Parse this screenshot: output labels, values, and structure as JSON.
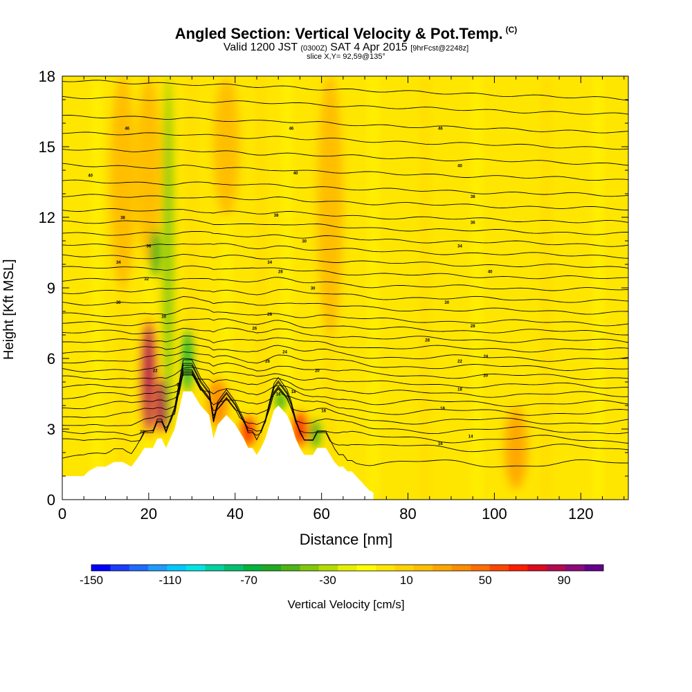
{
  "title": {
    "main": "Angled Section: Vertical Velocity & Pot.Temp.",
    "unit": "(C)",
    "valid_a": "Valid 1200 JST",
    "valid_z": "(0300Z)",
    "valid_b": "SAT 4 Apr 2015",
    "fcst": "[9hrFcst@2248z]",
    "slice": "slice X,Y= 92,59@135°"
  },
  "colors": {
    "background_field": "#ffd500",
    "contour": "#000000",
    "terrain": "#ffffff"
  },
  "chart_data": {
    "type": "heatmap",
    "xlabel": "Distance [nm]",
    "ylabel": "Height [Kft MSL]",
    "xlim": [
      0,
      131
    ],
    "ylim": [
      0,
      18
    ],
    "x_ticks": [
      0,
      20,
      40,
      60,
      80,
      100,
      120
    ],
    "y_ticks": [
      0,
      3,
      6,
      9,
      12,
      15,
      18
    ],
    "grid": false,
    "colorbar": {
      "label": "Vertical Velocity [cm/s]",
      "tick_labels": [
        -150,
        -110,
        -70,
        -30,
        10,
        50,
        90
      ],
      "bins": [
        -150,
        -140,
        -130,
        -120,
        -110,
        -100,
        -90,
        -80,
        -70,
        -60,
        -50,
        -40,
        -30,
        -20,
        -10,
        0,
        10,
        20,
        30,
        40,
        50,
        60,
        70,
        80,
        90,
        100,
        110
      ],
      "colors": [
        "#0000ff",
        "#1a3cff",
        "#1e6bff",
        "#1e9bff",
        "#00c8ff",
        "#00e4e4",
        "#00d2a0",
        "#00c070",
        "#00b43c",
        "#20aa20",
        "#50b414",
        "#82c80a",
        "#b4dc00",
        "#e6f000",
        "#ffff00",
        "#ffe600",
        "#ffd200",
        "#ffbe00",
        "#ffa500",
        "#ff8c00",
        "#ff6e00",
        "#ff4600",
        "#ff1e00",
        "#dc0a1e",
        "#b40a50",
        "#8c0a7a",
        "#64008c"
      ]
    },
    "terrain_profile": {
      "x": [
        0,
        5,
        6,
        8,
        10,
        12,
        14,
        16,
        18,
        19,
        20,
        21,
        22,
        23,
        24,
        25,
        26,
        27,
        28,
        29,
        30,
        32,
        34,
        35,
        36,
        38,
        40,
        42,
        43,
        44,
        45,
        46,
        47,
        48,
        49,
        50,
        51,
        52,
        53,
        54,
        55,
        56,
        57,
        58,
        59,
        60,
        61,
        62,
        63,
        64,
        65,
        66,
        67,
        68,
        69,
        70,
        71,
        72
      ],
      "height_kft": [
        1.0,
        1.0,
        1.2,
        1.4,
        1.4,
        1.6,
        1.6,
        1.4,
        1.9,
        2.2,
        2.2,
        2.2,
        2.6,
        2.6,
        2.2,
        2.6,
        3.0,
        3.8,
        4.6,
        4.6,
        4.6,
        4.0,
        3.6,
        2.6,
        3.2,
        3.6,
        3.2,
        2.6,
        2.2,
        2.2,
        1.9,
        2.2,
        2.6,
        3.2,
        3.8,
        4.0,
        3.8,
        3.6,
        3.2,
        2.6,
        2.2,
        1.9,
        1.9,
        1.9,
        2.2,
        2.2,
        2.2,
        1.9,
        1.6,
        1.4,
        1.4,
        1.2,
        1.2,
        1.0,
        0.8,
        0.6,
        0.4,
        0.3
      ]
    },
    "hotspots": [
      {
        "x": 20,
        "y_min": 2.6,
        "y_max": 7.8,
        "w": 90,
        "intensity": "high"
      },
      {
        "x": 23,
        "y_min": 2.8,
        "y_max": 5.2,
        "w": 90,
        "intensity": "high"
      },
      {
        "x": 43,
        "y_min": 2.2,
        "y_max": 3.6,
        "w": 70,
        "intensity": "high"
      },
      {
        "x": 55,
        "y_min": 2.2,
        "y_max": 3.8,
        "w": 70,
        "intensity": "high"
      },
      {
        "x": 36,
        "y_min": 3.0,
        "y_max": 5.2,
        "w": 45,
        "intensity": "medium"
      },
      {
        "x": 14,
        "y_min": 9.0,
        "y_max": 18.0,
        "w": 25,
        "intensity": "low"
      },
      {
        "x": 20,
        "y_min": 10.0,
        "y_max": 18.0,
        "w": 25,
        "intensity": "low"
      },
      {
        "x": 38,
        "y_min": 12.0,
        "y_max": 18.0,
        "w": 25,
        "intensity": "low"
      },
      {
        "x": 62,
        "y_min": 7.0,
        "y_max": 18.0,
        "w": 20,
        "intensity": "low"
      },
      {
        "x": 105,
        "y_min": 0.4,
        "y_max": 4.0,
        "w": 30,
        "intensity": "medium"
      }
    ],
    "downdrafts": [
      {
        "x": 24.5,
        "y_min": 3.0,
        "y_max": 18.0,
        "w": -40
      },
      {
        "x": 29,
        "y_min": 4.6,
        "y_max": 7.2,
        "w": -70
      },
      {
        "x": 21.5,
        "y_min": 9.5,
        "y_max": 11.5,
        "w": -60
      },
      {
        "x": 50.5,
        "y_min": 3.8,
        "y_max": 4.6,
        "w": -60
      },
      {
        "x": 58.5,
        "y_min": 2.2,
        "y_max": 3.4,
        "w": -60
      }
    ],
    "contour_heights_kft": [
      1.5,
      2.2,
      2.6,
      3.0,
      3.4,
      3.8,
      4.2,
      4.6,
      5.0,
      5.4,
      5.8,
      6.2,
      6.6,
      7.0,
      7.4,
      7.8,
      8.3,
      8.8,
      9.3,
      9.8,
      10.3,
      10.8,
      11.3,
      11.8,
      12.3,
      12.9,
      13.5,
      14.2,
      14.9,
      15.6,
      16.3,
      17.1,
      17.8
    ],
    "contour_labels": [
      {
        "x": 15.0,
        "y": 15.8,
        "text": "46"
      },
      {
        "x": 53.0,
        "y": 15.8,
        "text": "46"
      },
      {
        "x": 87.5,
        "y": 15.8,
        "text": "46"
      },
      {
        "x": 6.5,
        "y": 13.8,
        "text": "40"
      },
      {
        "x": 54.0,
        "y": 13.9,
        "text": "40"
      },
      {
        "x": 92.0,
        "y": 14.2,
        "text": "40"
      },
      {
        "x": 14.0,
        "y": 12.0,
        "text": "38"
      },
      {
        "x": 49.5,
        "y": 12.1,
        "text": "38"
      },
      {
        "x": 95.0,
        "y": 12.9,
        "text": "38"
      },
      {
        "x": 95.0,
        "y": 11.8,
        "text": "36"
      },
      {
        "x": 20.0,
        "y": 10.8,
        "text": "36"
      },
      {
        "x": 56.0,
        "y": 11.0,
        "text": "30"
      },
      {
        "x": 92.0,
        "y": 10.8,
        "text": "34"
      },
      {
        "x": 13.0,
        "y": 10.1,
        "text": "34"
      },
      {
        "x": 48.0,
        "y": 10.1,
        "text": "34"
      },
      {
        "x": 50.5,
        "y": 9.7,
        "text": "28"
      },
      {
        "x": 99.0,
        "y": 9.7,
        "text": "40"
      },
      {
        "x": 19.5,
        "y": 9.4,
        "text": "32"
      },
      {
        "x": 58.0,
        "y": 9.0,
        "text": "30"
      },
      {
        "x": 13.0,
        "y": 8.4,
        "text": "30"
      },
      {
        "x": 89.0,
        "y": 8.4,
        "text": "30"
      },
      {
        "x": 23.5,
        "y": 7.8,
        "text": "30"
      },
      {
        "x": 48.0,
        "y": 7.9,
        "text": "28"
      },
      {
        "x": 44.5,
        "y": 7.3,
        "text": "26"
      },
      {
        "x": 95.0,
        "y": 7.4,
        "text": "28"
      },
      {
        "x": 84.5,
        "y": 6.8,
        "text": "28"
      },
      {
        "x": 51.5,
        "y": 6.3,
        "text": "24"
      },
      {
        "x": 98.0,
        "y": 6.1,
        "text": "24"
      },
      {
        "x": 47.5,
        "y": 5.9,
        "text": "26"
      },
      {
        "x": 92.0,
        "y": 5.9,
        "text": "22"
      },
      {
        "x": 59.0,
        "y": 5.5,
        "text": "20"
      },
      {
        "x": 98.0,
        "y": 5.3,
        "text": "20"
      },
      {
        "x": 21.5,
        "y": 5.5,
        "text": "22"
      },
      {
        "x": 27.0,
        "y": 4.9,
        "text": "20"
      },
      {
        "x": 92.0,
        "y": 4.7,
        "text": "18"
      },
      {
        "x": 50.0,
        "y": 4.5,
        "text": "16"
      },
      {
        "x": 53.5,
        "y": 4.6,
        "text": "18"
      },
      {
        "x": 88.0,
        "y": 3.9,
        "text": "18"
      },
      {
        "x": 60.5,
        "y": 3.8,
        "text": "16"
      },
      {
        "x": 94.5,
        "y": 2.7,
        "text": "14"
      },
      {
        "x": 18.5,
        "y": 2.9,
        "text": "20"
      },
      {
        "x": 87.5,
        "y": 2.4,
        "text": "16"
      }
    ]
  }
}
